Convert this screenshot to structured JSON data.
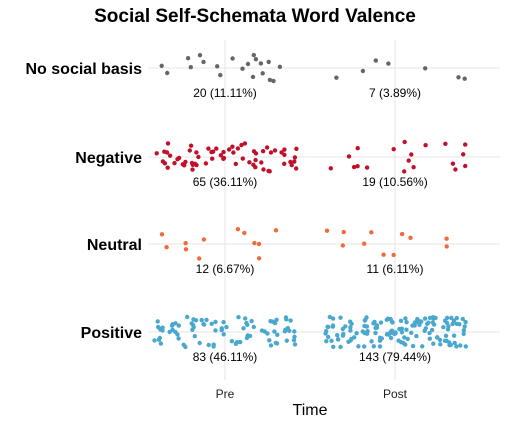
{
  "chart_data": {
    "type": "scatter",
    "title": "Social Self-Schemata Word Valence",
    "xlabel": "Time",
    "ylabel": "",
    "x_categories": [
      "Pre",
      "Post"
    ],
    "y_categories": [
      "No social basis",
      "Negative",
      "Neutral",
      "Positive"
    ],
    "grid": true,
    "legend": "none",
    "colors": {
      "No social basis": "#666666",
      "Negative": "#c0102a",
      "Neutral": "#f26a3b",
      "Positive": "#4aa8cf"
    },
    "cells": [
      {
        "category": "No social basis",
        "time": "Pre",
        "count": 20,
        "label": "20 (11.11%)"
      },
      {
        "category": "No social basis",
        "time": "Post",
        "count": 7,
        "label": "7 (3.89%)"
      },
      {
        "category": "Negative",
        "time": "Pre",
        "count": 65,
        "label": "65 (36.11%)"
      },
      {
        "category": "Negative",
        "time": "Post",
        "count": 19,
        "label": "19 (10.56%)"
      },
      {
        "category": "Neutral",
        "time": "Pre",
        "count": 12,
        "label": "12 (6.67%)"
      },
      {
        "category": "Neutral",
        "time": "Post",
        "count": 11,
        "label": "11 (6.11%)"
      },
      {
        "category": "Positive",
        "time": "Pre",
        "count": 83,
        "label": "83 (46.11%)"
      },
      {
        "category": "Positive",
        "time": "Post",
        "count": 143,
        "label": "143 (79.44%)"
      }
    ]
  }
}
